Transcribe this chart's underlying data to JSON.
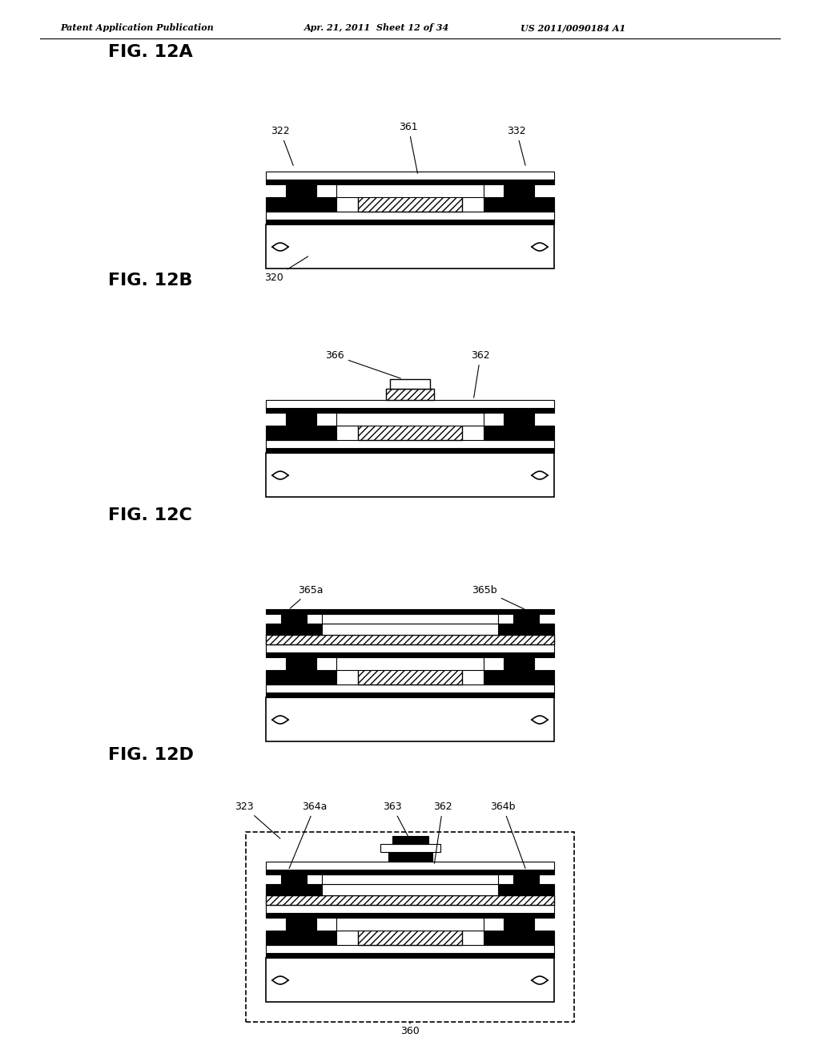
{
  "bg_color": "#ffffff",
  "header_text": "Patent Application Publication",
  "header_date": "Apr. 21, 2011  Sheet 12 of 34",
  "header_patent": "US 2011/0090184 A1",
  "line_color": "#000000",
  "fig_label_font": 16,
  "label_font": 9
}
